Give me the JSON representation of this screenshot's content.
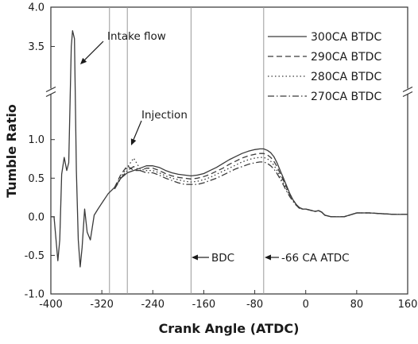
{
  "chart_data": {
    "type": "line",
    "xlabel": "Crank Angle (ATDC)",
    "ylabel": "Tumble Ratio",
    "xlim": [
      -400,
      160
    ],
    "ylim_lower": [
      -1.0,
      1.45
    ],
    "ylim_upper": [
      3.05,
      4.0
    ],
    "axis_break": "between 1.45 and 3.05 on the y axis",
    "x_ticks": [
      "-400",
      "-320",
      "-240",
      "-160",
      "-80",
      "0",
      "80",
      "160"
    ],
    "y_ticks": [
      "-1.0",
      "-0.5",
      "0.0",
      "0.5",
      "1.0",
      "3.5",
      "4.0"
    ],
    "legend_position": "top-right",
    "series": [
      {
        "name": "300CA BTDC",
        "line_style": "solid",
        "x": [
          -400,
          -395,
          -389,
          -386,
          -383,
          -379,
          -375,
          -372,
          -368,
          -366,
          -363,
          -360,
          -357,
          -354,
          -351,
          -347,
          -343,
          -338,
          -332,
          -326,
          -318,
          -310,
          -300,
          -290,
          -280,
          -270,
          -260,
          -250,
          -240,
          -230,
          -220,
          -210,
          -200,
          -190,
          -180,
          -170,
          -160,
          -150,
          -140,
          -130,
          -120,
          -110,
          -100,
          -90,
          -80,
          -72,
          -66,
          -60,
          -55,
          -50,
          -45,
          -40,
          -35,
          -30,
          -25,
          -20,
          -15,
          -10,
          -5,
          0,
          5,
          10,
          15,
          20,
          25,
          30,
          40,
          60,
          80,
          100,
          120,
          140,
          160
        ],
        "values": [
          0.0,
          0.0,
          -0.57,
          -0.3,
          0.55,
          0.77,
          0.6,
          0.7,
          3.5,
          3.7,
          3.6,
          0.6,
          -0.3,
          -0.65,
          -0.4,
          0.1,
          -0.2,
          -0.3,
          0.02,
          0.1,
          0.2,
          0.3,
          0.38,
          0.5,
          0.57,
          0.6,
          0.63,
          0.66,
          0.66,
          0.64,
          0.6,
          0.57,
          0.55,
          0.54,
          0.53,
          0.54,
          0.56,
          0.6,
          0.64,
          0.69,
          0.74,
          0.78,
          0.82,
          0.85,
          0.87,
          0.88,
          0.88,
          0.86,
          0.83,
          0.78,
          0.7,
          0.6,
          0.5,
          0.4,
          0.3,
          0.22,
          0.16,
          0.12,
          0.1,
          0.1,
          0.09,
          0.08,
          0.07,
          0.08,
          0.06,
          0.02,
          0.0,
          0.0,
          0.05,
          0.05,
          0.04,
          0.03,
          0.03
        ]
      },
      {
        "name": "290CA BTDC",
        "line_style": "dashed",
        "x": [
          -300,
          -290,
          -280,
          -270,
          -260,
          -250,
          -240,
          -230,
          -220,
          -210,
          -200,
          -190,
          -180,
          -170,
          -160,
          -150,
          -140,
          -130,
          -120,
          -110,
          -100,
          -90,
          -80,
          -72,
          -66,
          -60,
          -55,
          -50,
          -45,
          -40,
          -35,
          -30,
          -25,
          -20,
          -15,
          -10,
          -5,
          0,
          5,
          10,
          15,
          20,
          25,
          30,
          40,
          60,
          80,
          100,
          120,
          140,
          160
        ],
        "values": [
          0.38,
          0.55,
          0.66,
          0.6,
          0.6,
          0.63,
          0.63,
          0.6,
          0.56,
          0.53,
          0.51,
          0.5,
          0.49,
          0.5,
          0.52,
          0.55,
          0.59,
          0.63,
          0.68,
          0.72,
          0.76,
          0.79,
          0.81,
          0.82,
          0.82,
          0.8,
          0.77,
          0.72,
          0.65,
          0.56,
          0.47,
          0.38,
          0.29,
          0.22,
          0.16,
          0.12,
          0.1,
          0.1,
          0.09,
          0.08,
          0.07,
          0.08,
          0.06,
          0.02,
          0.0,
          0.0,
          0.05,
          0.05,
          0.04,
          0.03,
          0.03
        ]
      },
      {
        "name": "280CA BTDC",
        "line_style": "dotted",
        "x": [
          -300,
          -290,
          -280,
          -270,
          -260,
          -250,
          -240,
          -230,
          -220,
          -210,
          -200,
          -190,
          -180,
          -170,
          -160,
          -150,
          -140,
          -130,
          -120,
          -110,
          -100,
          -90,
          -80,
          -72,
          -66,
          -60,
          -55,
          -50,
          -45,
          -40,
          -35,
          -30,
          -25,
          -20,
          -15,
          -10,
          -5,
          0,
          5,
          10,
          15,
          20,
          25,
          30,
          40,
          60,
          80,
          100,
          120,
          140,
          160
        ],
        "values": [
          0.38,
          0.52,
          0.64,
          0.76,
          0.62,
          0.6,
          0.6,
          0.57,
          0.53,
          0.5,
          0.48,
          0.46,
          0.45,
          0.46,
          0.48,
          0.51,
          0.55,
          0.59,
          0.63,
          0.67,
          0.71,
          0.74,
          0.76,
          0.77,
          0.77,
          0.75,
          0.72,
          0.67,
          0.6,
          0.52,
          0.44,
          0.35,
          0.27,
          0.21,
          0.15,
          0.11,
          0.1,
          0.1,
          0.09,
          0.08,
          0.07,
          0.08,
          0.06,
          0.02,
          0.0,
          0.0,
          0.05,
          0.05,
          0.04,
          0.03,
          0.03
        ]
      },
      {
        "name": "270CA BTDC",
        "line_style": "dash-dot",
        "x": [
          -300,
          -290,
          -280,
          -270,
          -260,
          -250,
          -240,
          -230,
          -220,
          -210,
          -200,
          -190,
          -180,
          -170,
          -160,
          -150,
          -140,
          -130,
          -120,
          -110,
          -100,
          -90,
          -80,
          -72,
          -66,
          -60,
          -55,
          -50,
          -45,
          -40,
          -35,
          -30,
          -25,
          -20,
          -15,
          -10,
          -5,
          0,
          5,
          10,
          15,
          20,
          25,
          30,
          40,
          60,
          80,
          100,
          120,
          140,
          160
        ],
        "values": [
          0.36,
          0.5,
          0.6,
          0.65,
          0.6,
          0.57,
          0.57,
          0.54,
          0.5,
          0.47,
          0.44,
          0.42,
          0.42,
          0.42,
          0.44,
          0.47,
          0.5,
          0.54,
          0.58,
          0.62,
          0.65,
          0.68,
          0.7,
          0.71,
          0.71,
          0.69,
          0.66,
          0.62,
          0.56,
          0.49,
          0.41,
          0.33,
          0.26,
          0.2,
          0.15,
          0.11,
          0.1,
          0.1,
          0.09,
          0.08,
          0.07,
          0.08,
          0.06,
          0.02,
          0.0,
          0.0,
          0.05,
          0.05,
          0.04,
          0.03,
          0.03
        ]
      }
    ],
    "vertical_lines": [
      -308,
      -280,
      -180,
      -66
    ],
    "annotations": [
      {
        "text": "Intake flow",
        "x": -368,
        "y": 3.55
      },
      {
        "text": "Injection",
        "x": -272,
        "y": 0.8
      },
      {
        "text": "BDC",
        "x": -180,
        "y": -0.55
      },
      {
        "text": "-66 CA ATDC",
        "x": -66,
        "y": -0.55
      }
    ]
  }
}
